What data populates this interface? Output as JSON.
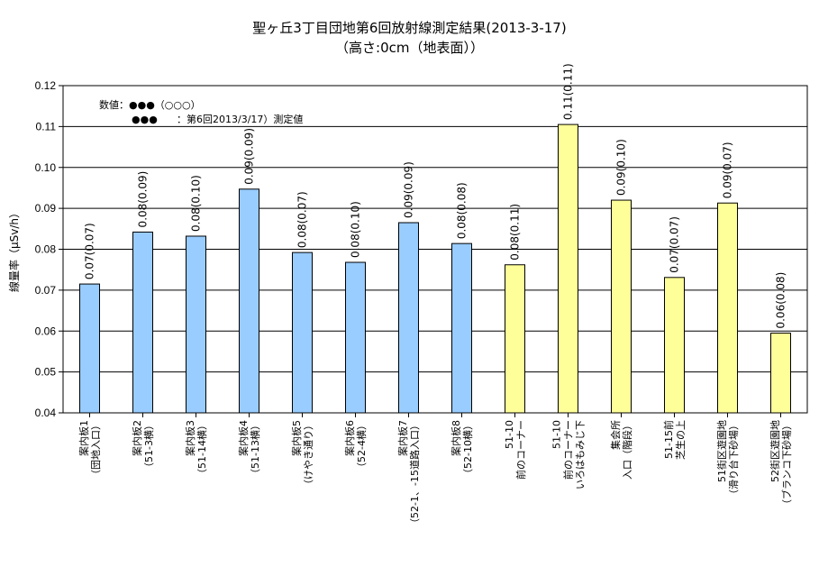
{
  "chart_data": {
    "type": "bar",
    "title": "聖ヶ丘3丁目団地第6回放射線測定結果(2013-3-17)",
    "subtitle": "（高さ:0cm（地表面））",
    "ylabel": "線量率（μSv/h）",
    "ylim": [
      0.04,
      0.12
    ],
    "yticks": [
      "0.04",
      "0.05",
      "0.06",
      "0.07",
      "0.08",
      "0.09",
      "0.10",
      "0.11",
      "0.12"
    ],
    "grid": true,
    "legend": {
      "line1": "数値：●●●（○○○）",
      "line2_marks": "●●●",
      "line2_text": "：第6回2013/3/17）測定値"
    },
    "categories": [
      [
        "案内板1",
        "（団地入口）"
      ],
      [
        "案内板2",
        "（51-3横）"
      ],
      [
        "案内板3",
        "（51-14横）"
      ],
      [
        "案内板4",
        "（51-13横）"
      ],
      [
        "案内板5",
        "（けやき通り）"
      ],
      [
        "案内板6",
        "（52-4横）"
      ],
      [
        "案内板7",
        "（52-1、-15道路入口）"
      ],
      [
        "案内板8",
        "（52-10横）"
      ],
      [
        "51-10",
        "前のコーナー"
      ],
      [
        "51-10",
        "前のコーナー",
        "いろはもみじ下"
      ],
      [
        "集会所",
        "入口（階段）"
      ],
      [
        "51-15前",
        "芝生の上"
      ],
      [
        "51街区遊園地",
        "（滑り台下砂場）"
      ],
      [
        "52街区遊園地",
        "（ブランコ下砂場）"
      ]
    ],
    "values": [
      0.0715,
      0.0842,
      0.0832,
      0.0947,
      0.0792,
      0.0768,
      0.0865,
      0.0814,
      0.0762,
      0.1105,
      0.092,
      0.0731,
      0.0913,
      0.0595
    ],
    "data_labels": [
      "0.07(0.07)",
      "0.08(0.09)",
      "0.08(0.10)",
      "0.09(0.09)",
      "0.08(0.07)",
      "0.08(0.10)",
      "0.09(0.09)",
      "0.08(0.08)",
      "0.08(0.11)",
      "0.11(0.11)",
      "0.09(0.10)",
      "0.07(0.07)",
      "0.09(0.07)",
      "0.06(0.08)"
    ],
    "colors": [
      "#99ccff",
      "#99ccff",
      "#99ccff",
      "#99ccff",
      "#99ccff",
      "#99ccff",
      "#99ccff",
      "#99ccff",
      "#ffff99",
      "#ffff99",
      "#ffff99",
      "#ffff99",
      "#ffff99",
      "#ffff99"
    ]
  }
}
